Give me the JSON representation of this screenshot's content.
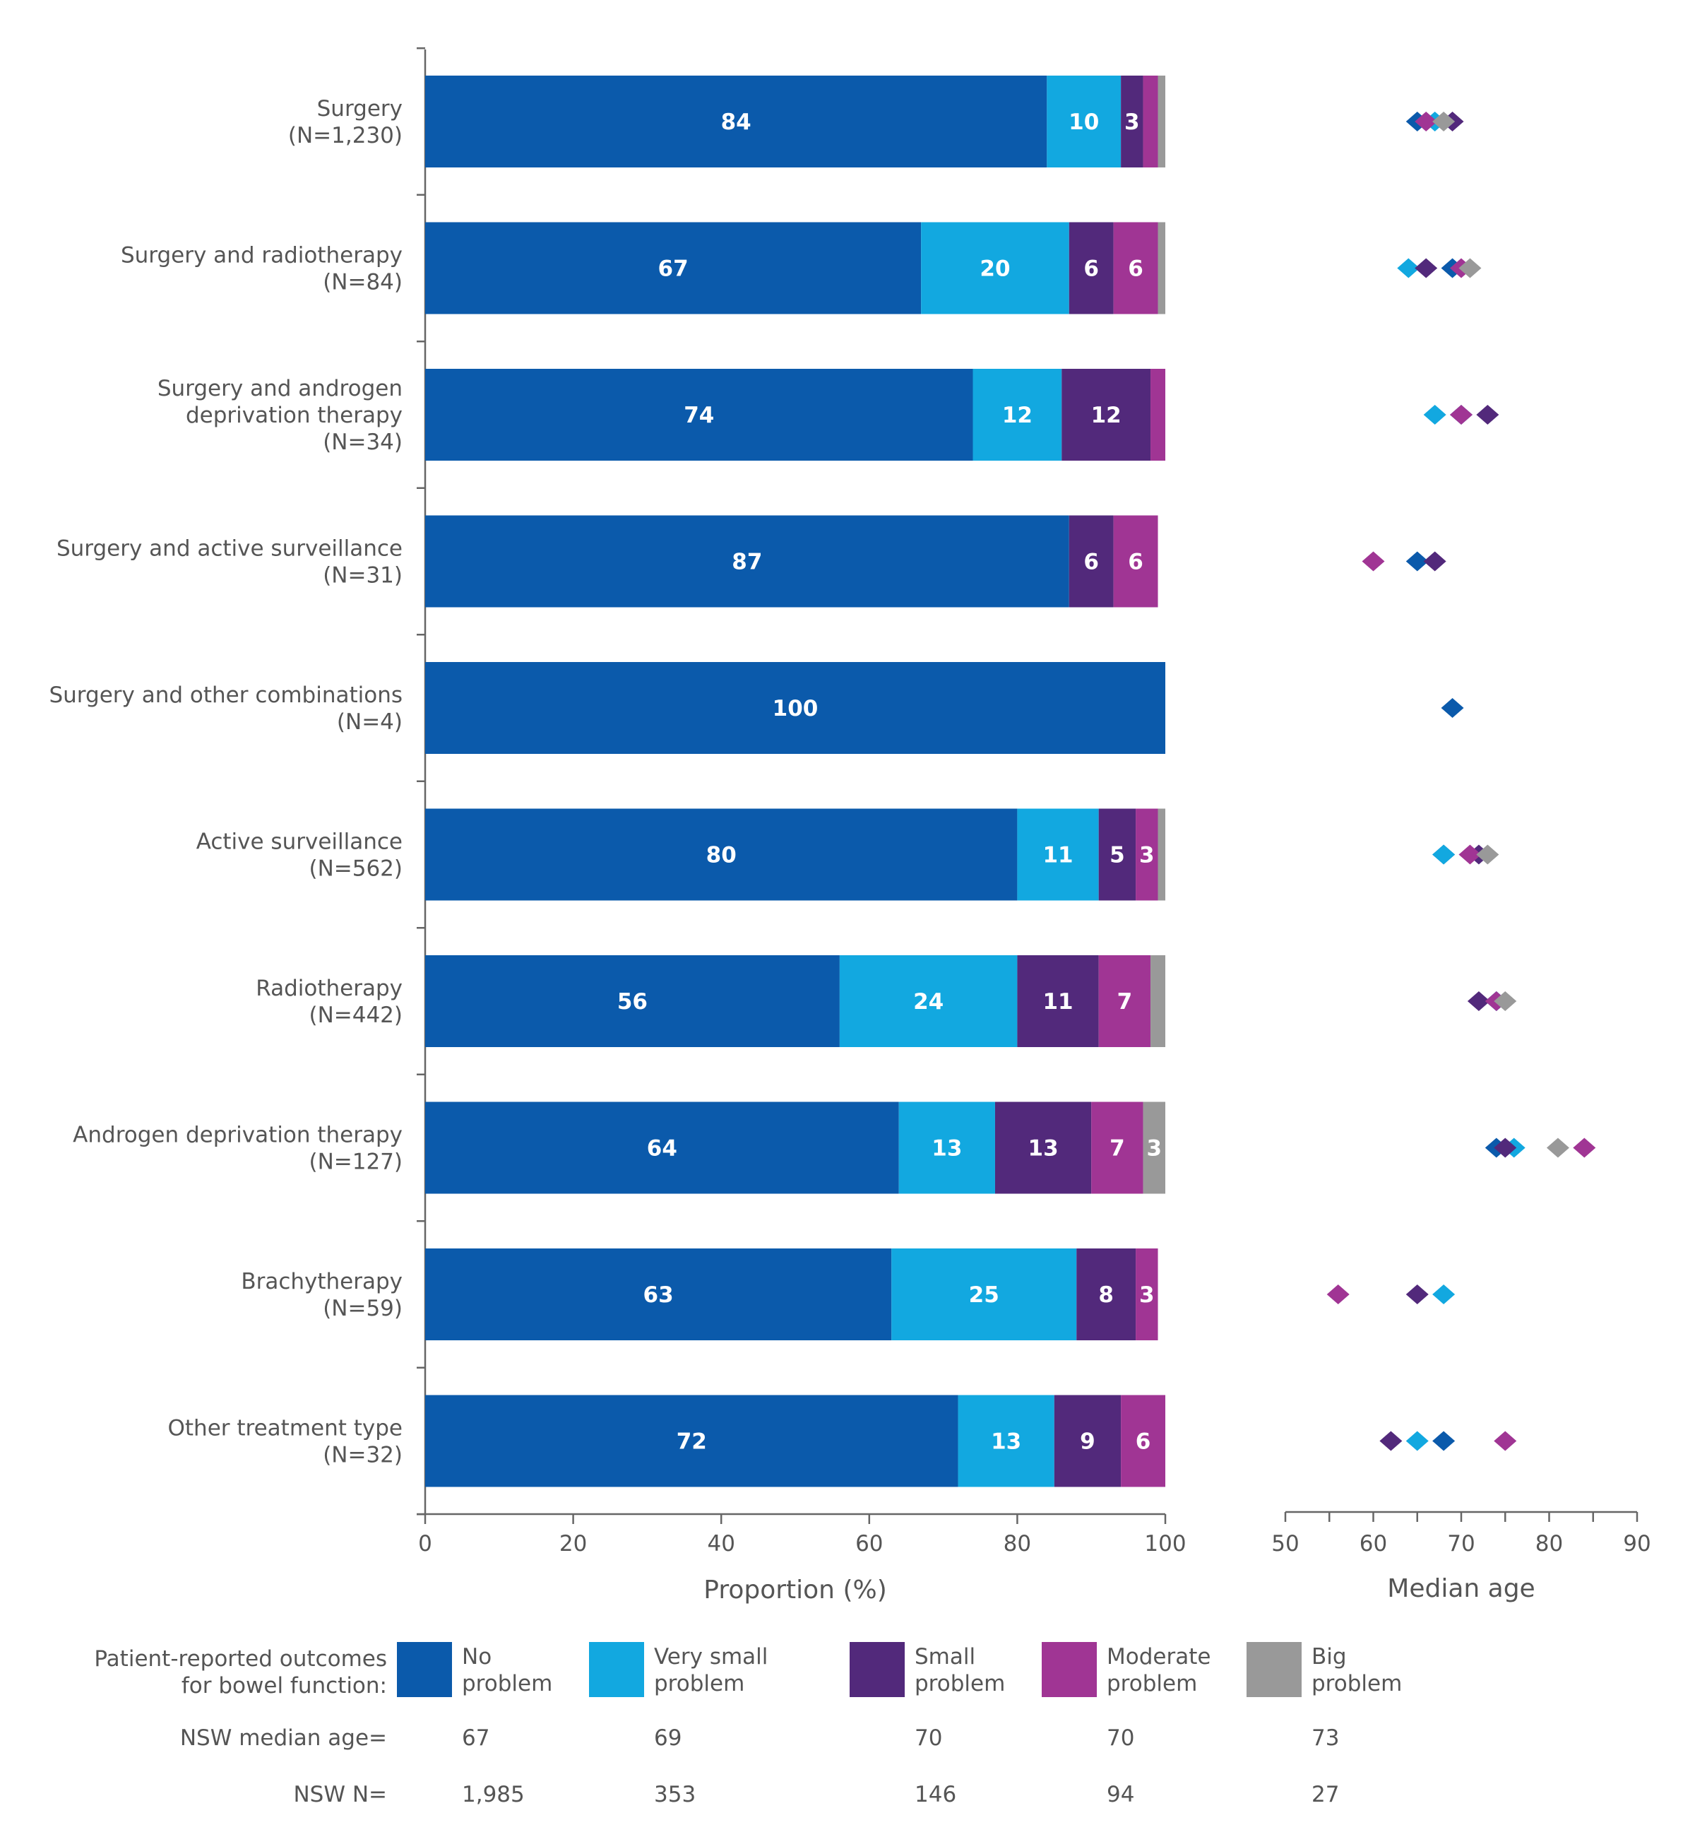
{
  "chart_data": [
    {
      "type": "bar",
      "orientation": "horizontal-stacked",
      "xlabel": "Proportion (%)",
      "xlim": [
        0,
        100
      ],
      "xticks": [
        0,
        20,
        40,
        60,
        80,
        100
      ],
      "grid": false,
      "categories": [
        [
          "Surgery",
          "(N=1,230)"
        ],
        [
          "Surgery and radiotherapy",
          "(N=84)"
        ],
        [
          "Surgery and androgen",
          "deprivation therapy",
          "(N=34)"
        ],
        [
          "Surgery and active surveillance",
          "(N=31)"
        ],
        [
          "Surgery and other combinations",
          "(N=4)"
        ],
        [
          "Active surveillance",
          "(N=562)"
        ],
        [
          "Radiotherapy",
          "(N=442)"
        ],
        [
          "Androgen deprivation therapy",
          "(N=127)"
        ],
        [
          "Brachytherapy",
          "(N=59)"
        ],
        [
          "Other treatment type",
          "(N=32)"
        ]
      ],
      "series": [
        {
          "name": "No problem",
          "color": "#0b5aab",
          "values": [
            84,
            67,
            74,
            87,
            100,
            80,
            56,
            64,
            63,
            72
          ],
          "labels": [
            "84",
            "67",
            "74",
            "87",
            "100",
            "80",
            "56",
            "64",
            "63",
            "72"
          ]
        },
        {
          "name": "Very small problem",
          "color": "#12a8e0",
          "values": [
            10,
            20,
            12,
            0,
            0,
            11,
            24,
            13,
            25,
            13
          ],
          "labels": [
            "10",
            "20",
            "12",
            "",
            "",
            "11",
            "24",
            "13",
            "25",
            "13"
          ]
        },
        {
          "name": "Small problem",
          "color": "#52297b",
          "values": [
            3,
            6,
            12,
            6,
            0,
            5,
            11,
            13,
            8,
            9
          ],
          "labels": [
            "3",
            "6",
            "12",
            "6",
            "",
            "5",
            "11",
            "13",
            "8",
            "9"
          ]
        },
        {
          "name": "Moderate problem",
          "color": "#a03594",
          "values": [
            2,
            6,
            2,
            6,
            0,
            3,
            7,
            7,
            3,
            6
          ],
          "labels": [
            "",
            "6",
            "",
            "6",
            "",
            "3",
            "7",
            "7",
            "3",
            "6"
          ]
        },
        {
          "name": "Big problem",
          "color": "#999999",
          "values": [
            1,
            1,
            0,
            0,
            0,
            1,
            2,
            3,
            0,
            0
          ],
          "labels": [
            "",
            "",
            "",
            "",
            "",
            "",
            "",
            "3",
            "",
            ""
          ]
        }
      ]
    },
    {
      "type": "scatter",
      "marker": "diamond",
      "xlabel": "Median age",
      "xlim": [
        50,
        90
      ],
      "xticks": [
        50,
        60,
        70,
        80,
        90
      ],
      "grid": false,
      "series": [
        {
          "name": "No problem",
          "color": "#0b5aab",
          "values": [
            65,
            69,
            70,
            65,
            69,
            68,
            74,
            74,
            null,
            68
          ]
        },
        {
          "name": "Very small problem",
          "color": "#12a8e0",
          "values": [
            67,
            64,
            67,
            null,
            null,
            68,
            74,
            76,
            68,
            65
          ]
        },
        {
          "name": "Small problem",
          "color": "#52297b",
          "values": [
            69,
            66,
            73,
            67,
            null,
            72,
            72,
            75,
            65,
            62
          ]
        },
        {
          "name": "Moderate problem",
          "color": "#a03594",
          "values": [
            66,
            70,
            70,
            60,
            null,
            71,
            74,
            84,
            56,
            75
          ]
        },
        {
          "name": "Big problem",
          "color": "#999999",
          "values": [
            68,
            71,
            null,
            null,
            null,
            73,
            75,
            81,
            null,
            null
          ]
        }
      ]
    }
  ],
  "legend": {
    "title": [
      "Patient-reported outcomes",
      "for bowel function:"
    ],
    "items": [
      {
        "label": [
          "No",
          "problem"
        ],
        "color": "#0b5aab",
        "median_age": "67",
        "n": "1,985"
      },
      {
        "label": [
          "Very small",
          "problem"
        ],
        "color": "#12a8e0",
        "median_age": "69",
        "n": "353"
      },
      {
        "label": [
          "Small",
          "problem"
        ],
        "color": "#52297b",
        "median_age": "70",
        "n": "146"
      },
      {
        "label": [
          "Moderate",
          "problem"
        ],
        "color": "#a03594",
        "median_age": "70",
        "n": "94"
      },
      {
        "label": [
          "Big",
          "problem"
        ],
        "color": "#999999",
        "median_age": "73",
        "n": "27"
      }
    ],
    "median_age_label": "NSW median age=",
    "n_label": "NSW N="
  }
}
